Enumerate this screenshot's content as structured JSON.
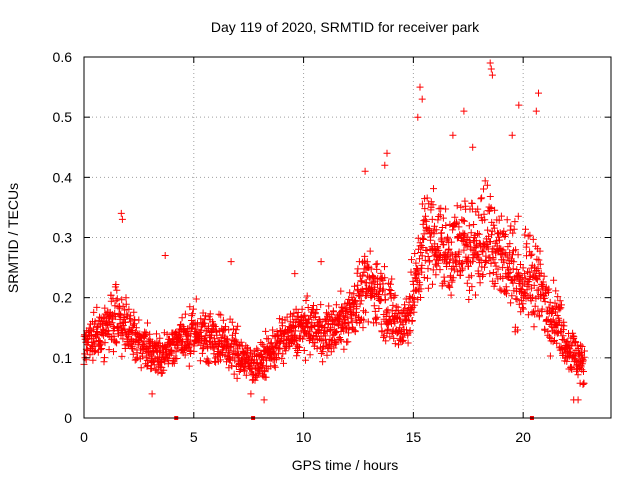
{
  "chart_data": {
    "type": "scatter",
    "title": "Day 119 of 2020, SRMTID for receiver park",
    "xlabel": "GPS time / hours",
    "ylabel": "SRMTID / TECUs",
    "xlim": [
      0,
      24
    ],
    "ylim": [
      0,
      0.6
    ],
    "x_ticks": [
      "0",
      "5",
      "10",
      "15",
      "20"
    ],
    "x_tick_values": [
      0,
      5,
      10,
      15,
      20
    ],
    "y_ticks": [
      "0",
      "0.1",
      "0.2",
      "0.3",
      "0.4",
      "0.5",
      "0.6"
    ],
    "y_tick_values": [
      0,
      0.1,
      0.2,
      0.3,
      0.4,
      0.5,
      0.6
    ],
    "grid": true,
    "marker": "plus",
    "color": "#ff0000",
    "series": [
      {
        "name": "SRMTID",
        "trend": [
          [
            0.0,
            0.12,
            0.04
          ],
          [
            0.5,
            0.14,
            0.05
          ],
          [
            1.0,
            0.15,
            0.06
          ],
          [
            1.5,
            0.17,
            0.07
          ],
          [
            2.0,
            0.15,
            0.06
          ],
          [
            2.5,
            0.13,
            0.05
          ],
          [
            3.0,
            0.11,
            0.04
          ],
          [
            3.5,
            0.1,
            0.04
          ],
          [
            4.0,
            0.12,
            0.04
          ],
          [
            4.5,
            0.13,
            0.05
          ],
          [
            5.0,
            0.14,
            0.05
          ],
          [
            5.5,
            0.14,
            0.05
          ],
          [
            6.0,
            0.13,
            0.05
          ],
          [
            6.5,
            0.12,
            0.05
          ],
          [
            7.0,
            0.11,
            0.05
          ],
          [
            7.5,
            0.09,
            0.04
          ],
          [
            8.0,
            0.09,
            0.04
          ],
          [
            8.5,
            0.11,
            0.04
          ],
          [
            9.0,
            0.13,
            0.05
          ],
          [
            9.5,
            0.14,
            0.05
          ],
          [
            10.0,
            0.15,
            0.05
          ],
          [
            10.5,
            0.15,
            0.05
          ],
          [
            11.0,
            0.14,
            0.05
          ],
          [
            11.5,
            0.15,
            0.05
          ],
          [
            12.0,
            0.17,
            0.06
          ],
          [
            12.5,
            0.2,
            0.07
          ],
          [
            13.0,
            0.22,
            0.07
          ],
          [
            13.5,
            0.21,
            0.08
          ],
          [
            14.0,
            0.17,
            0.07
          ],
          [
            14.5,
            0.15,
            0.06
          ],
          [
            15.0,
            0.2,
            0.07
          ],
          [
            15.5,
            0.3,
            0.1
          ],
          [
            16.0,
            0.3,
            0.1
          ],
          [
            16.5,
            0.27,
            0.09
          ],
          [
            17.0,
            0.28,
            0.09
          ],
          [
            17.5,
            0.29,
            0.1
          ],
          [
            18.0,
            0.29,
            0.1
          ],
          [
            18.5,
            0.31,
            0.12
          ],
          [
            19.0,
            0.27,
            0.1
          ],
          [
            19.5,
            0.25,
            0.1
          ],
          [
            20.0,
            0.22,
            0.09
          ],
          [
            20.5,
            0.24,
            0.09
          ],
          [
            21.0,
            0.19,
            0.07
          ],
          [
            21.5,
            0.17,
            0.06
          ],
          [
            22.0,
            0.12,
            0.05
          ],
          [
            22.5,
            0.1,
            0.05
          ],
          [
            22.8,
            0.08,
            0.04
          ]
        ],
        "outliers": [
          [
            1.7,
            0.34
          ],
          [
            1.75,
            0.33
          ],
          [
            12.8,
            0.41
          ],
          [
            13.8,
            0.44
          ],
          [
            13.7,
            0.42
          ],
          [
            15.3,
            0.55
          ],
          [
            15.4,
            0.53
          ],
          [
            15.2,
            0.5
          ],
          [
            17.3,
            0.51
          ],
          [
            18.5,
            0.59
          ],
          [
            18.6,
            0.57
          ],
          [
            18.55,
            0.58
          ],
          [
            19.8,
            0.52
          ],
          [
            20.7,
            0.54
          ],
          [
            20.6,
            0.51
          ],
          [
            16.8,
            0.47
          ],
          [
            17.7,
            0.45
          ],
          [
            19.5,
            0.47
          ],
          [
            3.7,
            0.27
          ],
          [
            6.7,
            0.26
          ],
          [
            9.6,
            0.24
          ],
          [
            10.8,
            0.26
          ],
          [
            22.3,
            0.03
          ],
          [
            22.5,
            0.03
          ],
          [
            3.1,
            0.04
          ],
          [
            7.6,
            0.04
          ],
          [
            8.2,
            0.03
          ]
        ],
        "zero_points": [
          4.2,
          7.7,
          20.4
        ]
      }
    ]
  }
}
